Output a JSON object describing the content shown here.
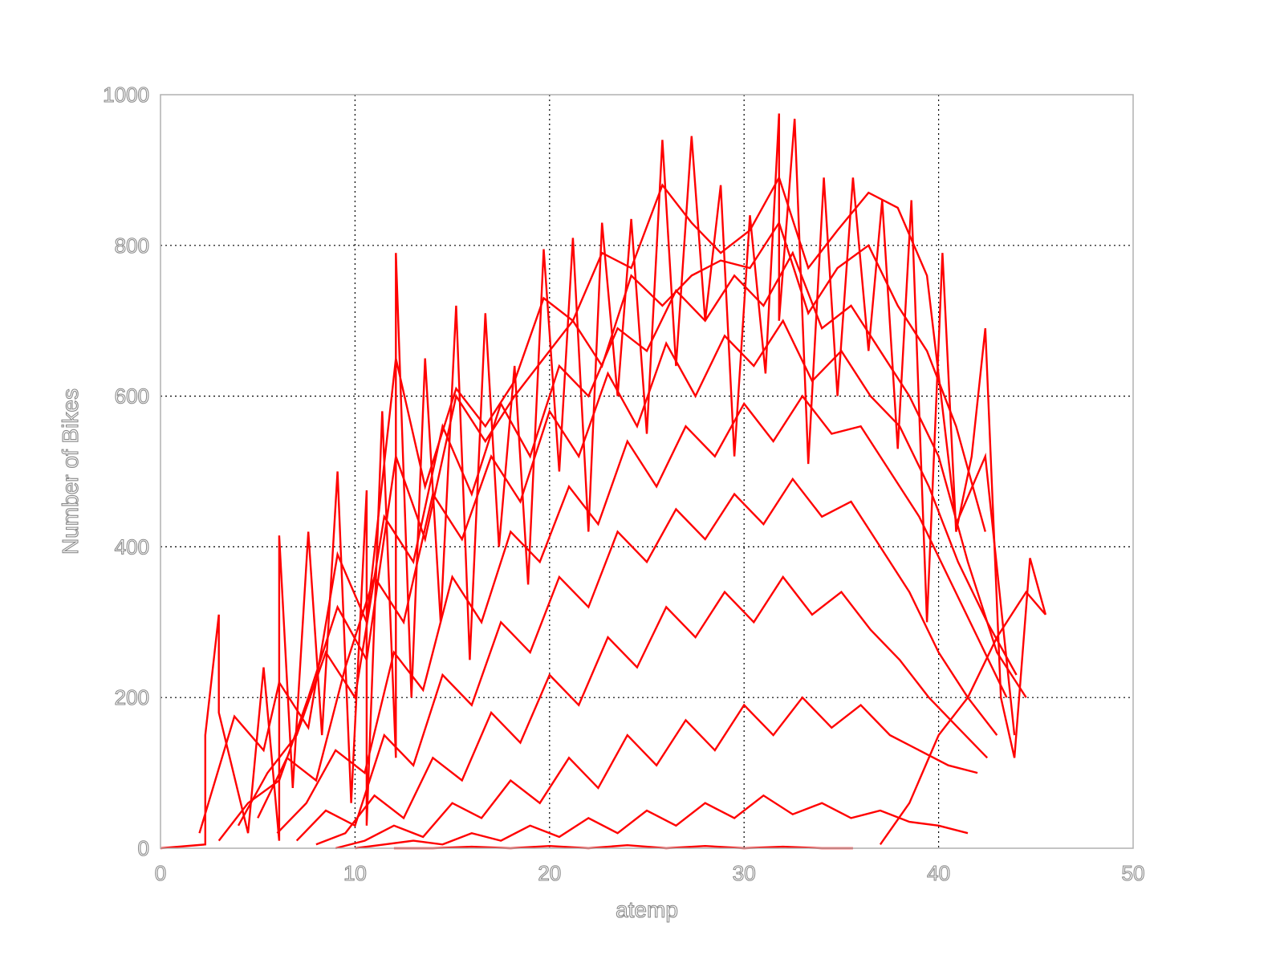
{
  "chart_data": {
    "type": "line",
    "title": "",
    "xlabel": "atemp",
    "ylabel": "Number of Bikes",
    "xlim": [
      0,
      50
    ],
    "ylim": [
      0,
      1000
    ],
    "xticks": [
      "0",
      "10",
      "20",
      "30",
      "40",
      "50"
    ],
    "yticks": [
      "0",
      "200",
      "400",
      "600",
      "800",
      "1000"
    ],
    "grid": true,
    "line_color": "#ff0000",
    "series": [
      {
        "x": [
          0.0,
          2.3,
          2.3,
          3.0,
          3.0,
          4.5,
          5.3,
          6.1,
          6.1,
          6.8,
          7.6,
          8.3,
          9.1,
          9.8,
          10.6,
          10.6,
          11.4,
          12.1,
          12.1,
          12.9,
          13.6,
          14.4,
          15.2,
          15.9,
          16.7,
          17.4,
          18.2,
          18.9,
          19.7,
          20.5,
          21.2,
          22.0,
          22.7,
          23.5,
          24.2,
          25.0,
          25.8,
          26.5,
          27.3,
          28.0,
          28.8,
          29.5,
          30.3,
          31.1,
          31.8,
          31.8,
          32.6,
          33.3,
          34.1,
          34.8,
          35.6,
          36.4,
          37.1,
          37.9,
          38.6,
          39.4,
          40.2,
          40.9,
          41.7,
          42.4,
          43.2,
          43.9,
          44.7,
          45.5
        ],
        "y": [
          0,
          5,
          150,
          310,
          180,
          20,
          240,
          10,
          415,
          80,
          420,
          150,
          500,
          60,
          475,
          30,
          580,
          120,
          790,
          200,
          650,
          300,
          720,
          250,
          710,
          400,
          640,
          350,
          795,
          500,
          810,
          420,
          830,
          600,
          835,
          550,
          940,
          640,
          945,
          700,
          880,
          520,
          840,
          630,
          975,
          700,
          968,
          510,
          890,
          600,
          890,
          660,
          860,
          530,
          860,
          300,
          790,
          420,
          520,
          690,
          200,
          120,
          385,
          310
        ]
      },
      {
        "x": [
          2.0,
          3.8,
          5.3,
          6.1,
          7.6,
          9.1,
          10.6,
          12.1,
          13.6,
          15.2,
          16.7,
          18.2,
          19.7,
          21.2,
          22.7,
          24.2,
          25.8,
          27.3,
          28.8,
          30.3,
          31.8,
          33.3,
          34.8,
          36.4,
          37.9,
          39.4,
          40.9,
          42.4,
          43.9
        ],
        "y": [
          20,
          175,
          130,
          220,
          160,
          390,
          300,
          650,
          480,
          610,
          560,
          620,
          730,
          700,
          790,
          770,
          880,
          830,
          790,
          820,
          890,
          770,
          820,
          870,
          850,
          760,
          430,
          520,
          150
        ]
      },
      {
        "x": [
          3.0,
          4.5,
          6.1,
          7.6,
          9.1,
          10.6,
          12.1,
          13.6,
          15.2,
          16.7,
          18.2,
          19.7,
          21.2,
          22.7,
          24.2,
          25.8,
          27.3,
          28.8,
          30.3,
          31.8,
          33.3,
          34.8,
          36.4,
          37.9,
          39.4,
          40.9,
          42.4
        ],
        "y": [
          10,
          60,
          90,
          200,
          320,
          250,
          520,
          410,
          600,
          540,
          600,
          650,
          700,
          640,
          760,
          720,
          760,
          780,
          770,
          830,
          710,
          770,
          800,
          720,
          660,
          560,
          420
        ]
      },
      {
        "x": [
          4.0,
          5.5,
          7.0,
          8.5,
          10.0,
          11.5,
          13.0,
          14.5,
          16.0,
          17.5,
          19.0,
          20.5,
          22.0,
          23.5,
          25.0,
          26.5,
          28.0,
          29.5,
          31.0,
          32.5,
          34.0,
          35.5,
          37.0,
          38.5,
          40.0,
          41.5,
          43.0,
          44.5
        ],
        "y": [
          30,
          100,
          150,
          260,
          200,
          440,
          380,
          560,
          470,
          590,
          520,
          640,
          600,
          690,
          660,
          740,
          700,
          760,
          720,
          790,
          690,
          720,
          660,
          600,
          520,
          380,
          260,
          200
        ]
      },
      {
        "x": [
          5.0,
          6.5,
          8.0,
          9.5,
          11.0,
          12.5,
          14.0,
          15.5,
          17.0,
          18.5,
          20.0,
          21.5,
          23.0,
          24.5,
          26.0,
          27.5,
          29.0,
          30.5,
          32.0,
          33.5,
          35.0,
          36.5,
          38.0,
          39.5,
          41.0,
          42.5,
          44.0
        ],
        "y": [
          40,
          120,
          90,
          240,
          360,
          300,
          470,
          410,
          520,
          460,
          580,
          520,
          630,
          560,
          670,
          600,
          680,
          640,
          700,
          620,
          660,
          600,
          560,
          480,
          380,
          300,
          230
        ]
      },
      {
        "x": [
          6.0,
          7.5,
          9.0,
          10.5,
          12.0,
          13.5,
          15.0,
          16.5,
          18.0,
          19.5,
          21.0,
          22.5,
          24.0,
          25.5,
          27.0,
          28.5,
          30.0,
          31.5,
          33.0,
          34.5,
          36.0,
          37.5,
          39.0,
          40.5,
          42.0,
          43.5
        ],
        "y": [
          20,
          60,
          130,
          100,
          260,
          210,
          360,
          300,
          420,
          380,
          480,
          430,
          540,
          480,
          560,
          520,
          590,
          540,
          600,
          550,
          560,
          500,
          440,
          360,
          280,
          200
        ]
      },
      {
        "x": [
          7.0,
          8.5,
          10.0,
          11.5,
          13.0,
          14.5,
          16.0,
          17.5,
          19.0,
          20.5,
          22.0,
          23.5,
          25.0,
          26.5,
          28.0,
          29.5,
          31.0,
          32.5,
          34.0,
          35.5,
          37.0,
          38.5,
          40.0,
          41.5,
          43.0
        ],
        "y": [
          10,
          50,
          30,
          150,
          110,
          230,
          190,
          300,
          260,
          360,
          320,
          420,
          380,
          450,
          410,
          470,
          430,
          490,
          440,
          460,
          400,
          340,
          260,
          200,
          150
        ]
      },
      {
        "x": [
          8.0,
          9.5,
          11.0,
          12.5,
          14.0,
          15.5,
          17.0,
          18.5,
          20.0,
          21.5,
          23.0,
          24.5,
          26.0,
          27.5,
          29.0,
          30.5,
          32.0,
          33.5,
          35.0,
          36.5,
          38.0,
          39.5,
          41.0,
          42.5
        ],
        "y": [
          5,
          20,
          70,
          40,
          120,
          90,
          180,
          140,
          230,
          190,
          280,
          240,
          320,
          280,
          340,
          300,
          360,
          310,
          340,
          290,
          250,
          200,
          160,
          120
        ]
      },
      {
        "x": [
          9.0,
          10.5,
          12.0,
          13.5,
          15.0,
          16.5,
          18.0,
          19.5,
          21.0,
          22.5,
          24.0,
          25.5,
          27.0,
          28.5,
          30.0,
          31.5,
          33.0,
          34.5,
          36.0,
          37.5,
          39.0,
          40.5,
          42.0
        ],
        "y": [
          0,
          10,
          30,
          15,
          60,
          40,
          90,
          60,
          120,
          80,
          150,
          110,
          170,
          130,
          190,
          150,
          200,
          160,
          190,
          150,
          130,
          110,
          100
        ]
      },
      {
        "x": [
          10.0,
          11.5,
          13.0,
          14.5,
          16.0,
          17.5,
          19.0,
          20.5,
          22.0,
          23.5,
          25.0,
          26.5,
          28.0,
          29.5,
          31.0,
          32.5,
          34.0,
          35.5,
          37.0,
          38.5,
          40.0,
          41.5
        ],
        "y": [
          0,
          5,
          10,
          5,
          20,
          10,
          30,
          15,
          40,
          20,
          50,
          30,
          60,
          40,
          70,
          45,
          60,
          40,
          50,
          35,
          30,
          20
        ]
      },
      {
        "x": [
          12.0,
          14.0,
          16.0,
          18.0,
          20.0,
          22.0,
          24.0,
          26.0,
          28.0,
          30.0,
          32.0,
          34.0,
          35.6
        ],
        "y": [
          0,
          0,
          2,
          0,
          3,
          0,
          4,
          0,
          3,
          0,
          2,
          0,
          0
        ]
      },
      {
        "x": [
          37.0,
          38.5,
          40.0,
          41.5,
          43.0,
          44.5,
          45.5
        ],
        "y": [
          5,
          60,
          150,
          200,
          280,
          340,
          310
        ]
      }
    ]
  }
}
